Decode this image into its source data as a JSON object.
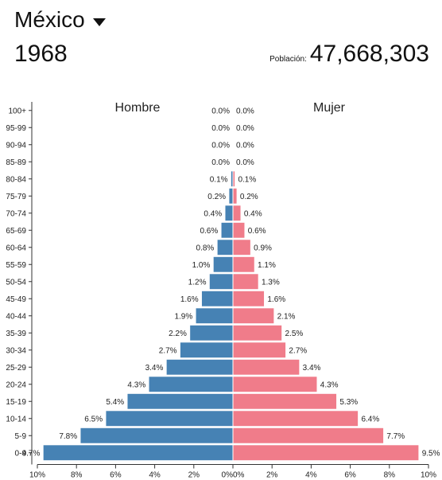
{
  "header": {
    "country": "México",
    "year": "1968",
    "population_label": "Población:",
    "population_value": "47,668,303"
  },
  "colors": {
    "male": "#4682b4",
    "female": "#f07c8a",
    "axis": "#333333"
  },
  "chart_data": {
    "type": "bar",
    "orientation": "horizontal-population-pyramid",
    "units": "%",
    "series_labels": {
      "male": "Hombre",
      "female": "Mujer"
    },
    "categories": [
      "100+",
      "95-99",
      "90-94",
      "85-89",
      "80-84",
      "75-79",
      "70-74",
      "65-69",
      "60-64",
      "55-59",
      "50-54",
      "45-49",
      "40-44",
      "35-39",
      "30-34",
      "25-29",
      "20-24",
      "15-19",
      "10-14",
      "5-9",
      "0-4"
    ],
    "series": [
      {
        "name": "Hombre",
        "values": [
          0.0,
          0.0,
          0.0,
          0.0,
          0.1,
          0.2,
          0.4,
          0.6,
          0.8,
          1.0,
          1.2,
          1.6,
          1.9,
          2.2,
          2.7,
          3.4,
          4.3,
          5.4,
          6.5,
          7.8,
          9.7
        ]
      },
      {
        "name": "Mujer",
        "values": [
          0.0,
          0.0,
          0.0,
          0.0,
          0.1,
          0.2,
          0.4,
          0.6,
          0.9,
          1.1,
          1.3,
          1.6,
          2.1,
          2.5,
          2.7,
          3.4,
          4.3,
          5.3,
          6.4,
          7.7,
          9.5
        ]
      }
    ],
    "x_ticks": [
      "10%",
      "8%",
      "6%",
      "4%",
      "2%",
      "0%",
      "0%",
      "2%",
      "4%",
      "6%",
      "8%",
      "10%"
    ],
    "xlim": [
      -10,
      10
    ]
  }
}
